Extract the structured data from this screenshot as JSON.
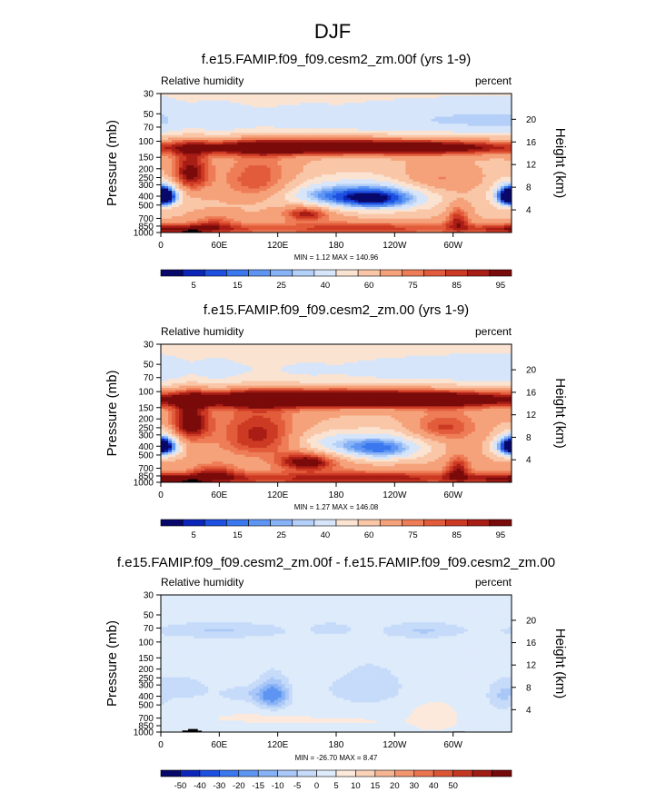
{
  "page": {
    "title": "DJF"
  },
  "colors": {
    "diverging_16": [
      "#08086b",
      "#0b26b8",
      "#1d4fe0",
      "#3b77ee",
      "#5e95f2",
      "#87b2f5",
      "#b4cff8",
      "#d6e5fa",
      "#fbe3d2",
      "#f9c6a7",
      "#f5a27b",
      "#ee7d57",
      "#e25c3b",
      "#cd3a24",
      "#a81d15",
      "#7a0b0b"
    ],
    "diverging_18": [
      "#08086b",
      "#0b26b8",
      "#1d4fe0",
      "#3b77ee",
      "#5e95f2",
      "#87b2f5",
      "#a9c7f7",
      "#c6dbf9",
      "#deebfb",
      "#fce9dc",
      "#f9d2b8",
      "#f6b592",
      "#f2956e",
      "#ea744f",
      "#db5535",
      "#c43722",
      "#a01b14",
      "#740a0a"
    ],
    "terrain": "#000000"
  },
  "chart_data": [
    {
      "type": "heatmap",
      "name": "panel-1",
      "title": "f.e15.FAMIP.f09_f09.cesm2_zm.00f (yrs 1-9)",
      "left_string": "Relative humidity",
      "right_string": "percent",
      "ylabel": "Pressure (mb)",
      "right_ylabel": "Height (km)",
      "x_ticks": [
        "0",
        "60E",
        "120E",
        "180",
        "120W",
        "60W"
      ],
      "x_tick_values": [
        0,
        60,
        120,
        180,
        240,
        300
      ],
      "xlim": [
        0,
        360
      ],
      "y_ticks": [
        "30",
        "50",
        "70",
        "100",
        "150",
        "200",
        "250",
        "300",
        "400",
        "500",
        "700",
        "850",
        "1000"
      ],
      "y_tick_values": [
        30,
        50,
        70,
        100,
        150,
        200,
        250,
        300,
        400,
        500,
        700,
        850,
        1000
      ],
      "ylim": [
        30,
        1000
      ],
      "height_ticks": [
        "20",
        "16",
        "12",
        "8",
        "4"
      ],
      "height_tick_values": [
        20,
        16,
        12,
        8,
        4
      ],
      "min": 1.12,
      "max": 140.96,
      "minmax_text": "MIN =   1.12  MAX = 140.96",
      "palette": "diverging_16",
      "colorbar_levels": [
        2,
        5,
        10,
        15,
        20,
        25,
        30,
        40,
        50,
        60,
        70,
        75,
        80,
        85,
        90,
        95
      ],
      "colorbar_labels": [
        "5",
        "15",
        "25",
        "40",
        "60",
        "75",
        "85",
        "95"
      ],
      "colorbar_label_slots": [
        1,
        3,
        5,
        7,
        9,
        11,
        13,
        15
      ],
      "fields": [
        {
          "lon": 0,
          "p": 60,
          "dlon": 360,
          "dp": 40,
          "v": -30,
          "name": "polar-vortex-dry"
        },
        {
          "lon": 200,
          "p": 115,
          "dlon": 200,
          "dp": 25,
          "v": 55,
          "name": "tropopause-moist-band"
        },
        {
          "lon": 30,
          "p": 220,
          "dlon": 20,
          "dp": 120,
          "v": 35
        },
        {
          "lon": 100,
          "p": 300,
          "dlon": 40,
          "dp": 200,
          "v": 25
        },
        {
          "lon": 220,
          "p": 420,
          "dlon": 50,
          "dp": 140,
          "v": -60,
          "name": "east-pacific-dry"
        },
        {
          "lon": 160,
          "p": 380,
          "dlon": 40,
          "dp": 120,
          "v": -25
        },
        {
          "lon": 357,
          "p": 400,
          "dlon": 16,
          "dp": 110,
          "v": -55
        },
        {
          "lon": 5,
          "p": 400,
          "dlon": 14,
          "dp": 100,
          "v": -45
        },
        {
          "lon": 100,
          "p": 420,
          "dlon": 40,
          "dp": 130,
          "v": -10
        },
        {
          "lon": 280,
          "p": 260,
          "dlon": 40,
          "dp": 90,
          "v": 15
        },
        {
          "lon": 150,
          "p": 620,
          "dlon": 25,
          "dp": 120,
          "v": 30
        },
        {
          "lon": 200,
          "p": 900,
          "dlon": 140,
          "dp": 150,
          "v": 25
        },
        {
          "lon": 20,
          "p": 920,
          "dlon": 60,
          "dp": 120,
          "v": 30
        },
        {
          "lon": 305,
          "p": 700,
          "dlon": 12,
          "dp": 220,
          "v": 25
        },
        {
          "lon": 55,
          "p": 750,
          "dlon": 25,
          "dp": 150,
          "v": 15
        }
      ],
      "base": 58,
      "p_low_adj": 0,
      "p_high_adj": 10
    },
    {
      "type": "heatmap",
      "name": "panel-2",
      "title": "f.e15.FAMIP.f09_f09.cesm2_zm.00 (yrs 1-9)",
      "left_string": "Relative humidity",
      "right_string": "percent",
      "ylabel": "Pressure (mb)",
      "right_ylabel": "Height (km)",
      "x_ticks": [
        "0",
        "60E",
        "120E",
        "180",
        "120W",
        "60W"
      ],
      "x_tick_values": [
        0,
        60,
        120,
        180,
        240,
        300
      ],
      "xlim": [
        0,
        360
      ],
      "y_ticks": [
        "30",
        "50",
        "70",
        "100",
        "150",
        "200",
        "250",
        "300",
        "400",
        "500",
        "700",
        "850",
        "1000"
      ],
      "y_tick_values": [
        30,
        50,
        70,
        100,
        150,
        200,
        250,
        300,
        400,
        500,
        700,
        850,
        1000
      ],
      "ylim": [
        30,
        1000
      ],
      "height_ticks": [
        "20",
        "16",
        "12",
        "8",
        "4"
      ],
      "height_tick_values": [
        20,
        16,
        12,
        8,
        4
      ],
      "min": 1.27,
      "max": 146.08,
      "minmax_text": "MIN =   1.27  MAX = 146.08",
      "palette": "diverging_16",
      "colorbar_levels": [
        2,
        5,
        10,
        15,
        20,
        25,
        30,
        40,
        50,
        60,
        70,
        75,
        80,
        85,
        90,
        95
      ],
      "colorbar_labels": [
        "5",
        "15",
        "25",
        "40",
        "60",
        "75",
        "85",
        "95"
      ],
      "colorbar_label_slots": [
        1,
        3,
        5,
        7,
        9,
        11,
        13,
        15
      ],
      "fields": [
        {
          "lon": 0,
          "p": 60,
          "dlon": 360,
          "dp": 40,
          "v": -30
        },
        {
          "lon": 200,
          "p": 120,
          "dlon": 200,
          "dp": 28,
          "v": 60
        },
        {
          "lon": 30,
          "p": 220,
          "dlon": 20,
          "dp": 120,
          "v": 35
        },
        {
          "lon": 100,
          "p": 300,
          "dlon": 40,
          "dp": 200,
          "v": 25
        },
        {
          "lon": 225,
          "p": 420,
          "dlon": 45,
          "dp": 140,
          "v": -50
        },
        {
          "lon": 170,
          "p": 360,
          "dlon": 35,
          "dp": 100,
          "v": -20
        },
        {
          "lon": 357,
          "p": 400,
          "dlon": 16,
          "dp": 110,
          "v": -50
        },
        {
          "lon": 5,
          "p": 400,
          "dlon": 14,
          "dp": 100,
          "v": -40
        },
        {
          "lon": 290,
          "p": 250,
          "dlon": 35,
          "dp": 90,
          "v": 20
        },
        {
          "lon": 150,
          "p": 600,
          "dlon": 30,
          "dp": 130,
          "v": 35
        },
        {
          "lon": 200,
          "p": 900,
          "dlon": 140,
          "dp": 150,
          "v": 28
        },
        {
          "lon": 20,
          "p": 920,
          "dlon": 60,
          "dp": 120,
          "v": 30
        },
        {
          "lon": 305,
          "p": 700,
          "dlon": 12,
          "dp": 220,
          "v": 25
        },
        {
          "lon": 55,
          "p": 750,
          "dlon": 25,
          "dp": 150,
          "v": 18
        }
      ],
      "base": 62,
      "p_low_adj": 0,
      "p_high_adj": 10
    },
    {
      "type": "heatmap",
      "name": "panel-3",
      "title": "f.e15.FAMIP.f09_f09.cesm2_zm.00f - f.e15.FAMIP.f09_f09.cesm2_zm.00",
      "left_string": "Relative humidity",
      "right_string": "percent",
      "ylabel": "Pressure (mb)",
      "right_ylabel": "Height (km)",
      "x_ticks": [
        "0",
        "60E",
        "120E",
        "180",
        "120W",
        "60W"
      ],
      "x_tick_values": [
        0,
        60,
        120,
        180,
        240,
        300
      ],
      "xlim": [
        0,
        360
      ],
      "y_ticks": [
        "30",
        "50",
        "70",
        "100",
        "150",
        "200",
        "250",
        "300",
        "400",
        "500",
        "700",
        "850",
        "1000"
      ],
      "y_tick_values": [
        30,
        50,
        70,
        100,
        150,
        200,
        250,
        300,
        400,
        500,
        700,
        850,
        1000
      ],
      "ylim": [
        30,
        1000
      ],
      "height_ticks": [
        "20",
        "16",
        "12",
        "8",
        "4"
      ],
      "height_tick_values": [
        20,
        16,
        12,
        8,
        4
      ],
      "min": -26.7,
      "max": 8.47,
      "minmax_text": "MIN = -26.70  MAX =   8.47",
      "palette": "diverging_18",
      "colorbar_levels": [
        -60,
        -50,
        -40,
        -30,
        -20,
        -15,
        -10,
        -5,
        0,
        5,
        10,
        15,
        20,
        30,
        40,
        50,
        60
      ],
      "colorbar_labels": [
        "-50",
        "-40",
        "-30",
        "-20",
        "-15",
        "-10",
        "-5",
        "0",
        "5",
        "10",
        "15",
        "20",
        "30",
        "40",
        "50"
      ],
      "colorbar_label_slots": [
        1,
        2,
        3,
        4,
        5,
        6,
        7,
        8,
        9,
        10,
        11,
        12,
        13,
        14,
        15
      ],
      "fields": [
        {
          "lon": 60,
          "p": 75,
          "dlon": 70,
          "dp": 15,
          "v": -9
        },
        {
          "lon": 270,
          "p": 75,
          "dlon": 40,
          "dp": 15,
          "v": -9
        },
        {
          "lon": 175,
          "p": 72,
          "dlon": 20,
          "dp": 12,
          "v": -6
        },
        {
          "lon": 115,
          "p": 390,
          "dlon": 15,
          "dp": 140,
          "v": -22
        },
        {
          "lon": 90,
          "p": 380,
          "dlon": 30,
          "dp": 80,
          "v": -7
        },
        {
          "lon": 210,
          "p": 320,
          "dlon": 40,
          "dp": 160,
          "v": -8
        },
        {
          "lon": 20,
          "p": 330,
          "dlon": 30,
          "dp": 100,
          "v": -7
        },
        {
          "lon": 350,
          "p": 420,
          "dlon": 15,
          "dp": 150,
          "v": -8
        },
        {
          "lon": 280,
          "p": 700,
          "dlon": 25,
          "dp": 250,
          "v": 4
        },
        {
          "lon": 100,
          "p": 700,
          "dlon": 50,
          "dp": 80,
          "v": 3
        },
        {
          "lon": 180,
          "p": 760,
          "dlon": 60,
          "dp": 70,
          "v": 2.5
        },
        {
          "lon": 170,
          "p": 200,
          "dlon": 25,
          "dp": 60,
          "v": 2.5
        }
      ],
      "base": -1.5,
      "p_low_adj": 0,
      "p_high_adj": 0
    }
  ]
}
